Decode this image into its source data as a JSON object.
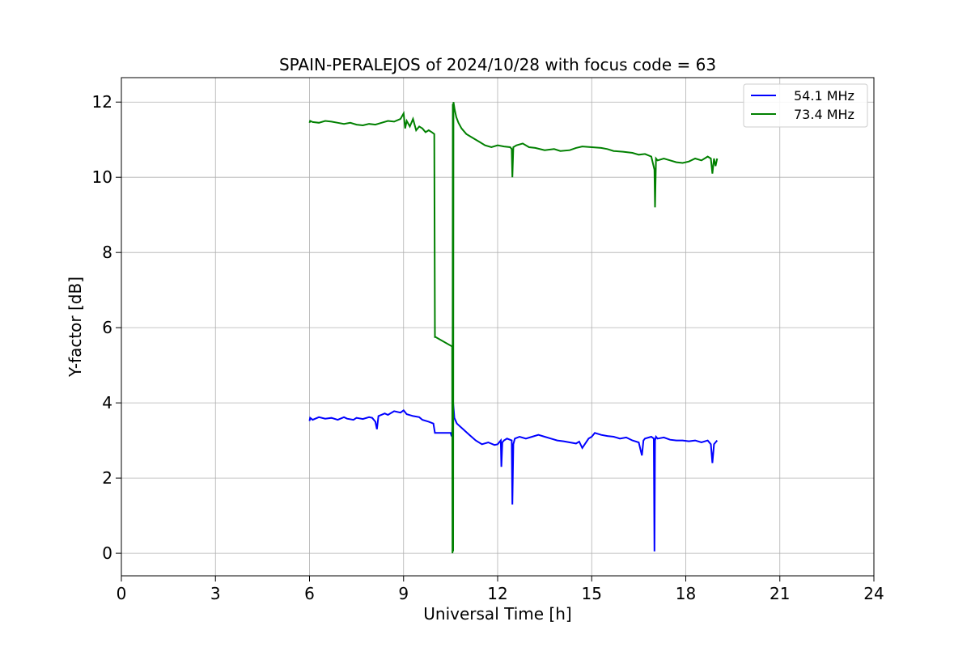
{
  "chart_data": {
    "type": "line",
    "title": "SPAIN-PERALEJOS of 2024/10/28 with focus code = 63",
    "xlabel": "Universal Time [h]",
    "ylabel": "Y-factor [dB]",
    "xlim": [
      0,
      24
    ],
    "ylim": [
      -0.6,
      12.65
    ],
    "xticks": [
      0,
      3,
      6,
      9,
      12,
      15,
      18,
      21,
      24
    ],
    "yticks": [
      0,
      2,
      4,
      6,
      8,
      10,
      12
    ],
    "grid": true,
    "legend_position": "top-right",
    "series": [
      {
        "name": "54.1 MHz",
        "color": "#0000ff",
        "x": [
          6.0,
          6.02,
          6.1,
          6.3,
          6.5,
          6.7,
          6.9,
          7.1,
          7.2,
          7.4,
          7.5,
          7.7,
          7.9,
          8.0,
          8.1,
          8.15,
          8.2,
          8.4,
          8.5,
          8.7,
          8.9,
          9.0,
          9.1,
          9.3,
          9.5,
          9.6,
          9.8,
          9.95,
          10.0,
          10.5,
          10.52,
          10.55,
          10.57,
          10.58,
          10.6,
          10.62,
          10.7,
          10.9,
          11.1,
          11.3,
          11.5,
          11.7,
          11.9,
          12.0,
          12.1,
          12.12,
          12.15,
          12.2,
          12.3,
          12.45,
          12.47,
          12.5,
          12.55,
          12.7,
          12.9,
          13.1,
          13.3,
          13.5,
          13.7,
          13.9,
          14.1,
          14.3,
          14.5,
          14.6,
          14.7,
          14.9,
          15.0,
          15.1,
          15.3,
          15.5,
          15.7,
          15.9,
          16.1,
          16.3,
          16.5,
          16.6,
          16.65,
          16.7,
          16.9,
          16.98,
          17.0,
          17.02,
          17.05,
          17.1,
          17.3,
          17.5,
          17.7,
          17.9,
          18.1,
          18.3,
          18.5,
          18.7,
          18.8,
          18.85,
          18.9,
          18.95,
          19.0
        ],
        "y": [
          3.52,
          3.6,
          3.55,
          3.62,
          3.58,
          3.6,
          3.55,
          3.62,
          3.58,
          3.55,
          3.6,
          3.57,
          3.62,
          3.6,
          3.5,
          3.3,
          3.65,
          3.72,
          3.68,
          3.78,
          3.74,
          3.8,
          3.7,
          3.65,
          3.62,
          3.55,
          3.5,
          3.45,
          3.2,
          3.2,
          3.15,
          3.2,
          3.9,
          4.0,
          3.8,
          3.6,
          3.45,
          3.3,
          3.15,
          3.0,
          2.9,
          2.95,
          2.88,
          2.9,
          3.0,
          2.3,
          2.95,
          3.0,
          3.05,
          3.0,
          1.3,
          2.9,
          3.05,
          3.1,
          3.05,
          3.1,
          3.15,
          3.1,
          3.05,
          3.0,
          2.98,
          2.95,
          2.92,
          2.97,
          2.8,
          3.05,
          3.1,
          3.2,
          3.15,
          3.12,
          3.1,
          3.05,
          3.08,
          3.0,
          2.95,
          2.6,
          3.0,
          3.05,
          3.1,
          3.05,
          0.05,
          3.0,
          3.1,
          3.05,
          3.08,
          3.02,
          3.0,
          3.0,
          2.98,
          3.0,
          2.95,
          3.0,
          2.9,
          2.4,
          2.9,
          2.95,
          3.0
        ]
      },
      {
        "name": "73.4 MHz",
        "color": "#008000",
        "x": [
          6.0,
          6.02,
          6.1,
          6.3,
          6.5,
          6.7,
          6.9,
          7.1,
          7.3,
          7.5,
          7.7,
          7.9,
          8.1,
          8.3,
          8.5,
          8.7,
          8.9,
          9.0,
          9.05,
          9.1,
          9.2,
          9.3,
          9.4,
          9.5,
          9.6,
          9.7,
          9.8,
          9.9,
          9.98,
          10.0,
          10.02,
          10.55,
          10.56,
          10.57,
          10.58,
          10.59,
          10.6,
          10.63,
          10.68,
          10.75,
          10.85,
          11.0,
          11.2,
          11.4,
          11.6,
          11.8,
          12.0,
          12.2,
          12.4,
          12.45,
          12.47,
          12.5,
          12.6,
          12.8,
          13.0,
          13.2,
          13.5,
          13.8,
          14.0,
          14.3,
          14.5,
          14.7,
          15.0,
          15.3,
          15.5,
          15.7,
          16.0,
          16.3,
          16.5,
          16.7,
          16.9,
          17.0,
          17.02,
          17.05,
          17.1,
          17.3,
          17.5,
          17.7,
          17.9,
          18.1,
          18.3,
          18.5,
          18.7,
          18.8,
          18.85,
          18.9,
          18.95,
          19.0
        ],
        "y": [
          11.45,
          11.5,
          11.47,
          11.45,
          11.5,
          11.48,
          11.45,
          11.42,
          11.45,
          11.4,
          11.38,
          11.42,
          11.4,
          11.45,
          11.5,
          11.48,
          11.55,
          11.7,
          11.3,
          11.5,
          11.35,
          11.55,
          11.25,
          11.35,
          11.3,
          11.2,
          11.25,
          11.2,
          11.15,
          5.75,
          5.75,
          5.5,
          0.0,
          11.95,
          0.05,
          12.0,
          11.95,
          11.8,
          11.6,
          11.45,
          11.3,
          11.15,
          11.05,
          10.95,
          10.85,
          10.8,
          10.85,
          10.82,
          10.8,
          10.75,
          10.0,
          10.8,
          10.85,
          10.9,
          10.8,
          10.78,
          10.72,
          10.75,
          10.7,
          10.72,
          10.78,
          10.82,
          10.8,
          10.78,
          10.75,
          10.7,
          10.68,
          10.65,
          10.6,
          10.62,
          10.55,
          10.2,
          9.2,
          10.5,
          10.45,
          10.5,
          10.45,
          10.4,
          10.38,
          10.42,
          10.5,
          10.45,
          10.55,
          10.5,
          10.1,
          10.5,
          10.3,
          10.5
        ]
      }
    ]
  }
}
